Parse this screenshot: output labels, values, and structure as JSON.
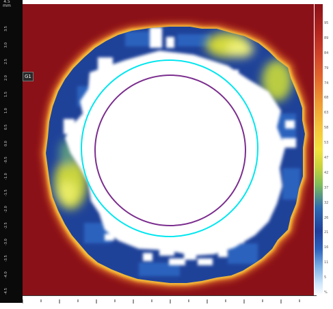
{
  "viewer": {
    "ruler_unit": "mm",
    "ruler_top_value": "4.5",
    "y_ticks": [
      "3.5",
      "3.0",
      "2.5",
      "2.0",
      "1.5",
      "1.0",
      "0.5",
      "0.0",
      "-0.5",
      "-1.0",
      "-1.5",
      "-2.0",
      "-2.5",
      "-3.0",
      "-3.5",
      "-4.0",
      "-4.5"
    ],
    "cursor_label": "G1",
    "colorbar_labels": [
      "95",
      "89",
      "84",
      "79",
      "74",
      "68",
      "63",
      "58",
      "53",
      "47",
      "42",
      "37",
      "32",
      "26",
      "21",
      "16",
      "11",
      "5",
      "%"
    ]
  },
  "colors": {
    "background_red": "#8b1118",
    "ring_cyan": "#00e5ee",
    "ring_purple": "#7b2d8e",
    "blue_dark": "#1b3c8f",
    "blue_mid": "#2a5cb6",
    "yellow_green": "#c9d53a",
    "orange_edge": "#f08a2c",
    "white": "#ffffff"
  }
}
